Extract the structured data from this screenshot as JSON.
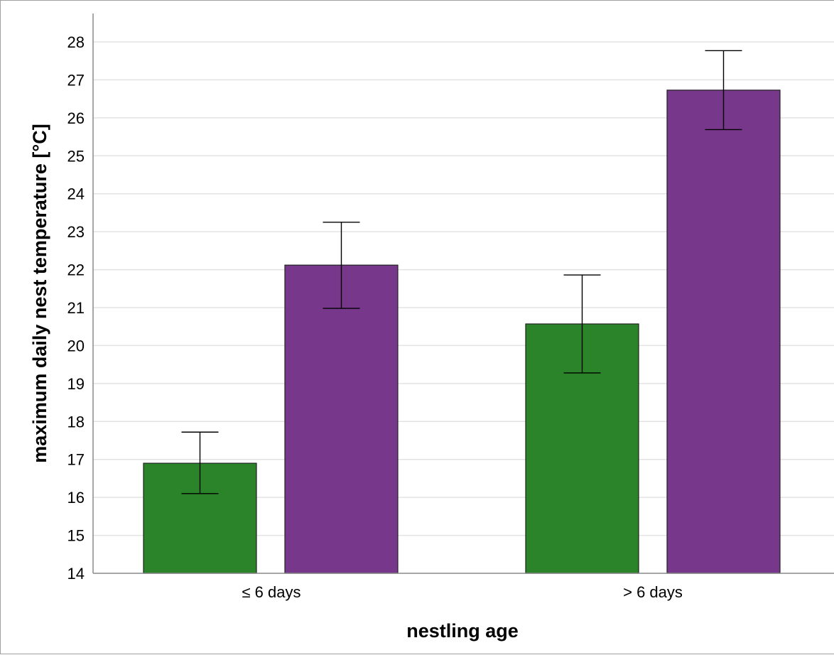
{
  "chart_data": {
    "type": "bar",
    "categories": [
      "≤ 6 days",
      "> 6 days"
    ],
    "series": [
      {
        "color": "#2b8429",
        "values": [
          16.9,
          20.57
        ],
        "err_low": [
          16.1,
          19.28
        ],
        "err_high": [
          17.72,
          21.86
        ]
      },
      {
        "color": "#77378b",
        "values": [
          22.12,
          26.73
        ],
        "err_low": [
          20.98,
          25.69
        ],
        "err_high": [
          23.25,
          27.77
        ]
      }
    ],
    "xlabel": "nestling age",
    "ylabel": "maximum daily nest temperature [°C]",
    "ylim": [
      14,
      28
    ],
    "yticks": [
      14,
      15,
      16,
      17,
      18,
      19,
      20,
      21,
      22,
      23,
      24,
      25,
      26,
      27,
      28
    ],
    "grid": true,
    "legend": "none"
  }
}
